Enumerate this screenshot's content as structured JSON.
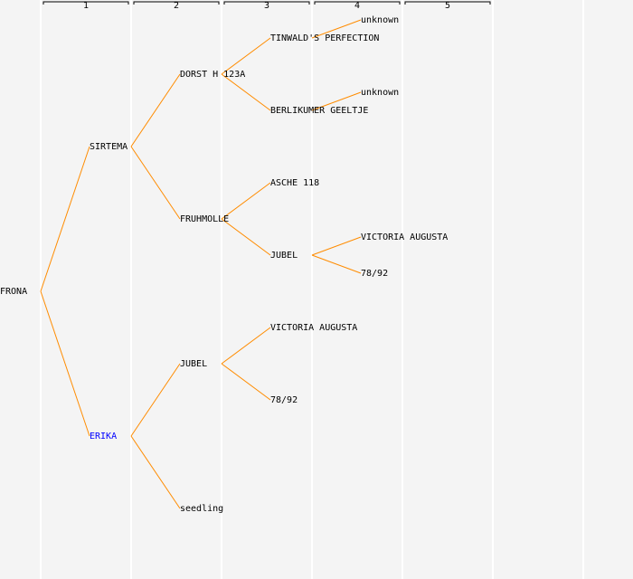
{
  "colors": {
    "background": "#f4f4f4",
    "line": "#ff8c00",
    "text": "#000000",
    "highlight": "#0000ff",
    "column_divider": "#ffffff"
  },
  "generations": [
    "1",
    "2",
    "3",
    "4",
    "5"
  ],
  "tree": {
    "name": "FRONA",
    "children": [
      {
        "name": "SIRTEMA",
        "children": [
          {
            "name": "DORST H 123A",
            "children": [
              {
                "name": "TINWALD'S PERFECTION",
                "children": [
                  {
                    "name": "unknown"
                  }
                ]
              },
              {
                "name": "BERLIKUMER GEELTJE",
                "children": [
                  {
                    "name": "unknown"
                  }
                ]
              }
            ]
          },
          {
            "name": "FRUHMOLLE",
            "children": [
              {
                "name": "ASCHE 118"
              },
              {
                "name": "JUBEL",
                "children": [
                  {
                    "name": "VICTORIA AUGUSTA"
                  },
                  {
                    "name": "78/92"
                  }
                ]
              }
            ]
          }
        ]
      },
      {
        "name": "ERIKA",
        "highlight": true,
        "children": [
          {
            "name": "JUBEL",
            "children": [
              {
                "name": "VICTORIA AUGUSTA"
              },
              {
                "name": "78/92"
              }
            ]
          },
          {
            "name": "seedling"
          }
        ]
      }
    ]
  }
}
